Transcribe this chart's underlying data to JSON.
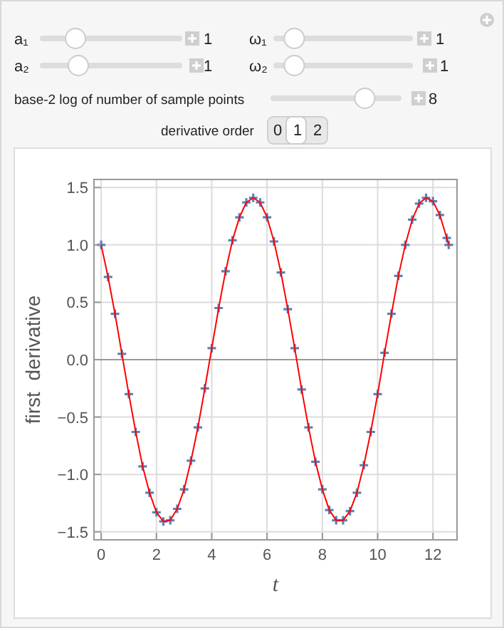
{
  "chart_data": {
    "type": "scatter",
    "xlabel": "t",
    "ylabel": "first  derivative",
    "xlim": [
      -0.26,
      12.87
    ],
    "ylim": [
      -1.57,
      1.57
    ],
    "xticks": [
      0,
      2,
      4,
      6,
      8,
      10,
      12
    ],
    "yticks": [
      {
        "value": -1.5,
        "label": "−1.5"
      },
      {
        "value": -1,
        "label": "−1.0"
      },
      {
        "value": -0.5,
        "label": "−0.5"
      },
      {
        "value": 0,
        "label": "0.0"
      },
      {
        "value": 0.5,
        "label": "0.5"
      },
      {
        "value": 1,
        "label": "1.0"
      },
      {
        "value": 1.5,
        "label": "1.5"
      }
    ],
    "grid": true,
    "annotations": [
      "a₁",
      "1",
      "ω₁",
      "1",
      "a₂",
      "1",
      "ω₂",
      "1",
      "base-2 log of number of sample points",
      "8",
      "derivative order",
      "0",
      "1",
      "2"
    ],
    "x": [
      0,
      0.25,
      0.5,
      0.75,
      1,
      1.25,
      1.5,
      1.75,
      2,
      2.25,
      2.5,
      2.75,
      3,
      3.25,
      3.5,
      3.75,
      4,
      4.25,
      4.5,
      4.75,
      5,
      5.25,
      5.5,
      5.75,
      6,
      6.25,
      6.5,
      6.75,
      7,
      7.25,
      7.5,
      7.75,
      8,
      8.25,
      8.5,
      8.75,
      9,
      9.25,
      9.5,
      9.75,
      10,
      10.25,
      10.5,
      10.75,
      11,
      11.25,
      11.5,
      11.75,
      12,
      12.25,
      12.5,
      12.57
    ],
    "series": [
      {
        "type": "line",
        "color": "#ff0000",
        "line_style": "solid",
        "values": [
          1,
          0.72,
          0.4,
          0.05,
          -0.3,
          -0.63,
          -0.93,
          -1.16,
          -1.33,
          -1.41,
          -1.4,
          -1.3,
          -1.13,
          -0.88,
          -0.59,
          -0.25,
          0.1,
          0.45,
          0.77,
          1.04,
          1.24,
          1.37,
          1.41,
          1.37,
          1.24,
          1.03,
          0.76,
          0.44,
          0.1,
          -0.26,
          -0.59,
          -0.89,
          -1.13,
          -1.31,
          -1.4,
          -1.4,
          -1.32,
          -1.16,
          -0.92,
          -0.63,
          -0.3,
          0.06,
          0.4,
          0.73,
          1,
          1.22,
          1.36,
          1.41,
          1.38,
          1.26,
          1.06,
          1
        ]
      },
      {
        "color": "#5e81b5",
        "marker": "cross",
        "values": [
          1,
          0.72,
          0.4,
          0.05,
          -0.3,
          -0.63,
          -0.93,
          -1.16,
          -1.33,
          -1.41,
          -1.4,
          -1.3,
          -1.13,
          -0.88,
          -0.59,
          -0.25,
          0.1,
          0.45,
          0.77,
          1.04,
          1.24,
          1.37,
          1.41,
          1.37,
          1.24,
          1.03,
          0.76,
          0.44,
          0.1,
          -0.26,
          -0.59,
          -0.89,
          -1.13,
          -1.31,
          -1.4,
          -1.4,
          -1.32,
          -1.16,
          -0.92,
          -0.63,
          -0.3,
          0.06,
          0.4,
          0.73,
          1,
          1.22,
          1.36,
          1.41,
          1.38,
          1.26,
          1.06,
          1
        ]
      }
    ]
  }
}
